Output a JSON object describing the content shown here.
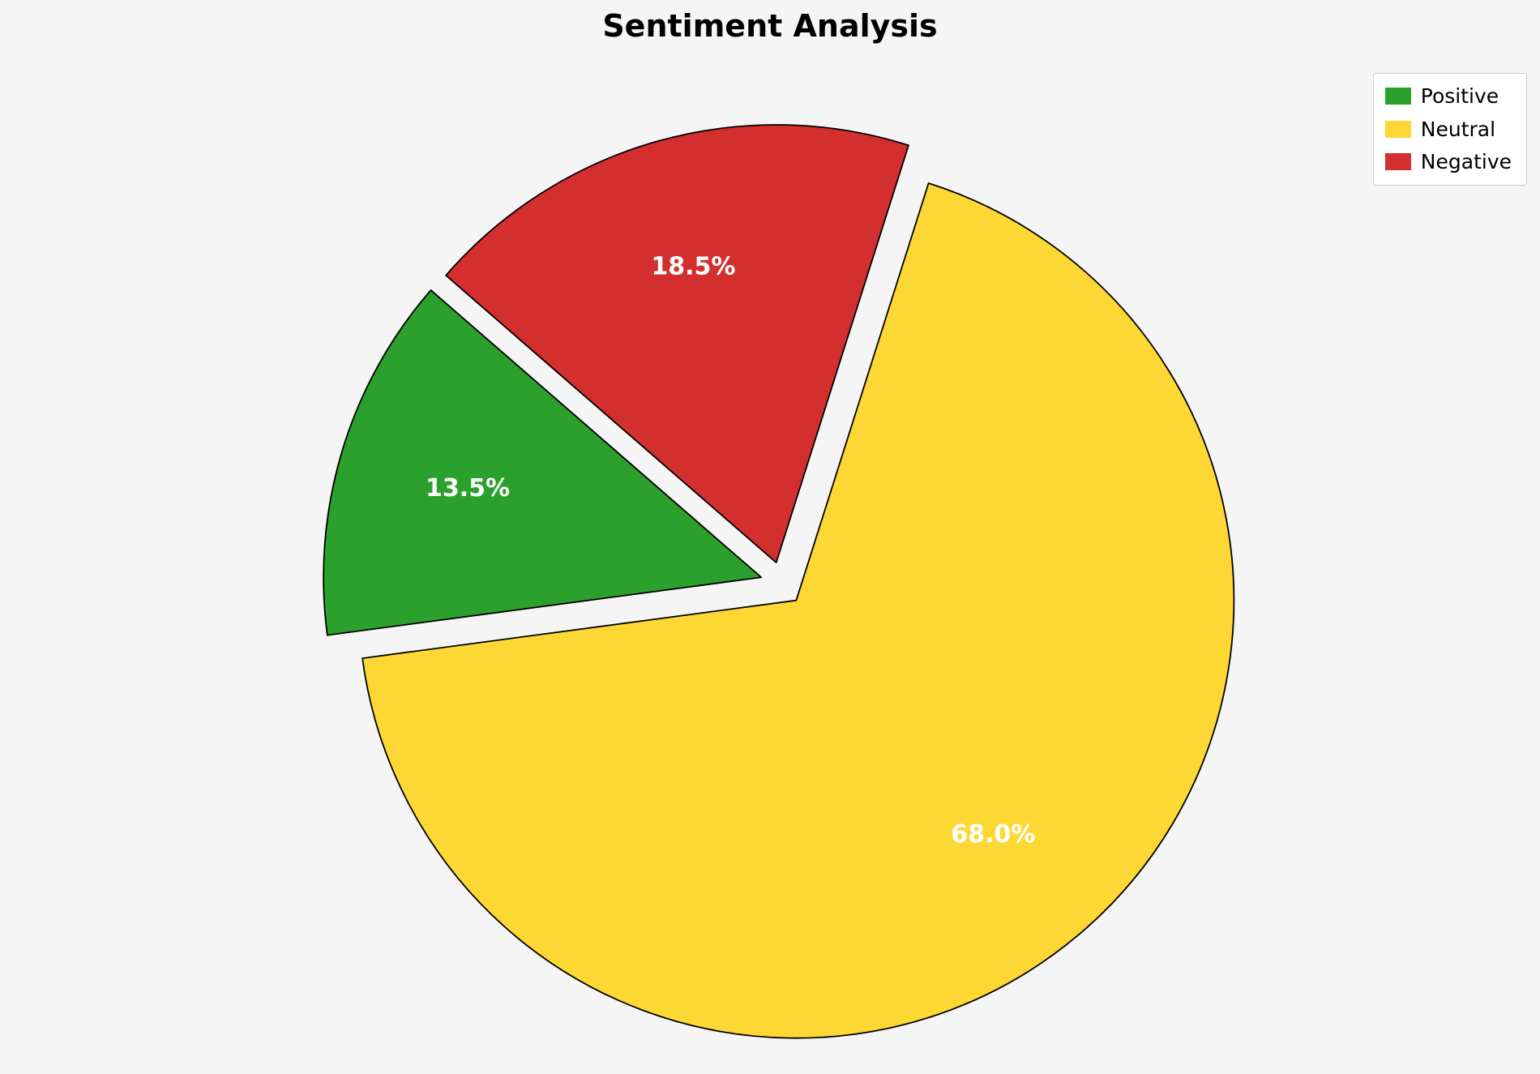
{
  "page": {
    "background_color": "#f5f5f5"
  },
  "chart_data": {
    "type": "pie",
    "title": "Sentiment Analysis",
    "labels": [
      "Positive",
      "Neutral",
      "Negative"
    ],
    "values": [
      13.5,
      68.0,
      18.5
    ],
    "pct_labels": [
      "13.5%",
      "68.0%",
      "18.5%"
    ],
    "colors": [
      "#2ca02c",
      "#fdd835",
      "#d32f2f"
    ],
    "edge_color": "#000000",
    "pct_label_color": "#ffffff",
    "explode": [
      0.05,
      0.05,
      0.05
    ],
    "start_angle": 139,
    "counterclockwise": true,
    "pct_distance": 0.7,
    "legend": {
      "position": "upper right",
      "entries": [
        "Positive",
        "Neutral",
        "Negative"
      ]
    }
  }
}
